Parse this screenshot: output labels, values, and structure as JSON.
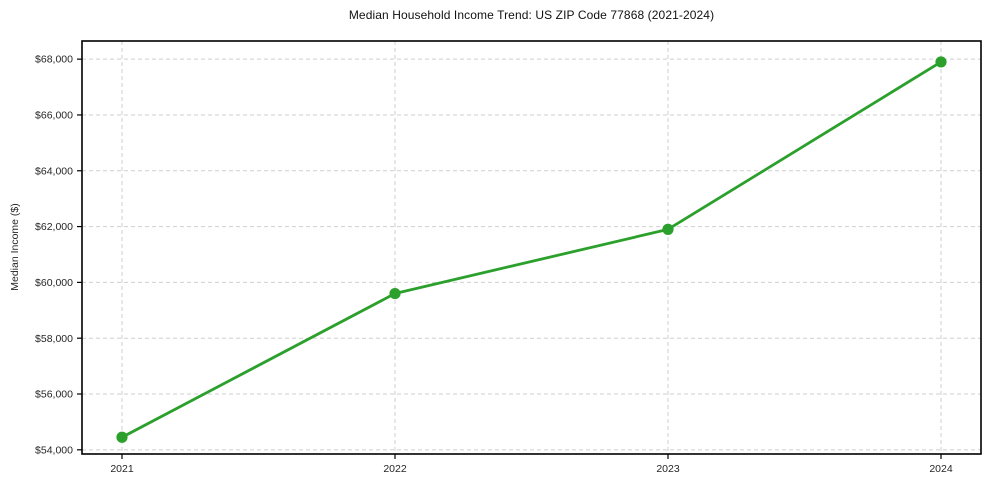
{
  "chart_data": {
    "type": "line",
    "title": "Median Household Income Trend: US ZIP Code 77868 (2021-2024)",
    "xlabel": "",
    "ylabel": "Median Income ($)",
    "categories": [
      "2021",
      "2022",
      "2023",
      "2024"
    ],
    "series": [
      {
        "name": "Median Household Income",
        "values": [
          54450,
          59600,
          61900,
          67900
        ]
      }
    ],
    "y_ticks": {
      "values": [
        54000,
        56000,
        58000,
        60000,
        62000,
        64000,
        66000,
        68000
      ],
      "labels": [
        "$54,000",
        "$56,000",
        "$58,000",
        "$60,000",
        "$62,000",
        "$64,000",
        "$66,000",
        "$68,000"
      ]
    },
    "ylim": [
      53850,
      68650
    ],
    "grid": "dashed",
    "legend_position": "none",
    "colors": {
      "line": "#2ca02c",
      "marker": "#2ca02c",
      "grid": "#cfcfcf",
      "axis": "#000000",
      "text": "#262626",
      "background": "#ffffff"
    }
  }
}
